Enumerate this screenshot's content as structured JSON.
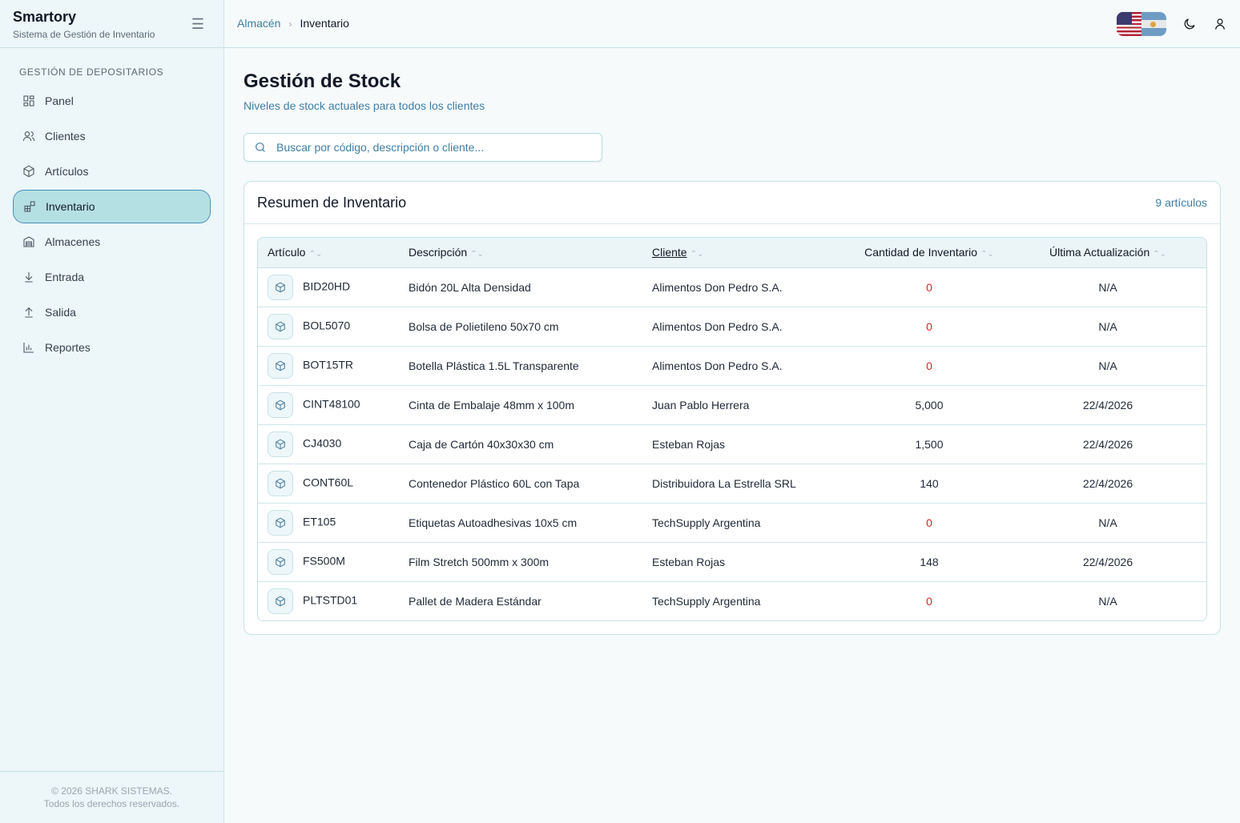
{
  "brand": {
    "name": "Smartory",
    "subtitle": "Sistema de Gestión de Inventario"
  },
  "sidebar": {
    "section": "GESTIÓN DE DEPOSITARIOS",
    "items": [
      {
        "label": "Panel",
        "icon": "dashboard-icon"
      },
      {
        "label": "Clientes",
        "icon": "users-icon"
      },
      {
        "label": "Artículos",
        "icon": "package-icon"
      },
      {
        "label": "Inventario",
        "icon": "inventory-icon",
        "active": true
      },
      {
        "label": "Almacenes",
        "icon": "warehouse-icon"
      },
      {
        "label": "Entrada",
        "icon": "arrow-down-icon"
      },
      {
        "label": "Salida",
        "icon": "arrow-up-icon"
      },
      {
        "label": "Reportes",
        "icon": "chart-icon"
      }
    ],
    "footer": [
      "© 2026 SHARK SISTEMAS.",
      "Todos los derechos reservados."
    ]
  },
  "breadcrumb": {
    "parent": "Almacén",
    "current": "Inventario"
  },
  "page": {
    "title": "Gestión de Stock",
    "subtitle": "Niveles de stock actuales para todos los clientes"
  },
  "search": {
    "placeholder": "Buscar por código, descripción o cliente...",
    "value": ""
  },
  "card": {
    "title": "Resumen de Inventario",
    "count": "9 artículos"
  },
  "table": {
    "headers": [
      "Artículo",
      "Descripción",
      "Cliente",
      "Cantidad de Inventario",
      "Última Actualización"
    ],
    "rows": [
      [
        "BID20HD",
        "Bidón 20L Alta Densidad",
        "Alimentos Don Pedro S.A.",
        "0",
        "N/A"
      ],
      [
        "BOL5070",
        "Bolsa de Polietileno 50x70 cm",
        "Alimentos Don Pedro S.A.",
        "0",
        "N/A"
      ],
      [
        "BOT15TR",
        "Botella Plástica 1.5L Transparente",
        "Alimentos Don Pedro S.A.",
        "0",
        "N/A"
      ],
      [
        "CINT48100",
        "Cinta de Embalaje 48mm x 100m",
        "Juan Pablo Herrera",
        "5,000",
        "22/4/2026"
      ],
      [
        "CJ4030",
        "Caja de Cartón 40x30x30 cm",
        "Esteban Rojas",
        "1,500",
        "22/4/2026"
      ],
      [
        "CONT60L",
        "Contenedor Plástico 60L con Tapa",
        "Distribuidora La Estrella SRL",
        "140",
        "22/4/2026"
      ],
      [
        "ET105",
        "Etiquetas Autoadhesivas 10x5 cm",
        "TechSupply Argentina",
        "0",
        "N/A"
      ],
      [
        "FS500M",
        "Film Stretch 500mm x 300m",
        "Esteban Rojas",
        "148",
        "22/4/2026"
      ],
      [
        "PLTSTD01",
        "Pallet de Madera Estándar",
        "TechSupply Argentina",
        "0",
        "N/A"
      ]
    ]
  }
}
